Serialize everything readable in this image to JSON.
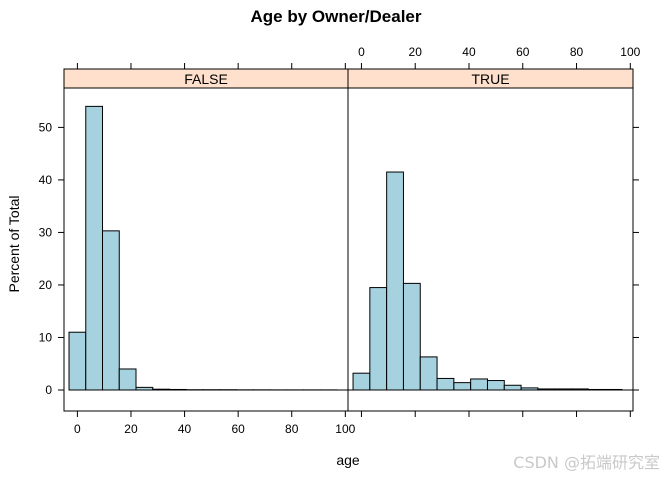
{
  "chart_data": {
    "type": "bar",
    "title": "Age by Owner/Dealer",
    "xlabel": "age",
    "ylabel": "Percent of Total",
    "xlim": [
      -5,
      101
    ],
    "ylim": [
      -4,
      57.5
    ],
    "xticks": [
      0,
      20,
      40,
      60,
      80,
      100
    ],
    "yticks": [
      0,
      10,
      20,
      30,
      40,
      50
    ],
    "bin_width": 6.25,
    "bin_start": -3.125,
    "grid": false,
    "panels": [
      {
        "name": "FALSE",
        "values": [
          11.0,
          54.0,
          30.3,
          4.0,
          0.5,
          0.15,
          0.1,
          0.05,
          0.05,
          0.05,
          0.03,
          0.03,
          0.02,
          0.02,
          0.02,
          0.02,
          0.0
        ]
      },
      {
        "name": "TRUE",
        "values": [
          3.2,
          19.5,
          41.5,
          20.3,
          6.3,
          2.2,
          1.4,
          2.1,
          1.8,
          0.9,
          0.4,
          0.2,
          0.2,
          0.2,
          0.1,
          0.1,
          0.0
        ]
      }
    ],
    "strip_color": "#ffe0cc",
    "bar_color": "#a6d2e0"
  },
  "watermark": "CSDN @拓端研究室"
}
